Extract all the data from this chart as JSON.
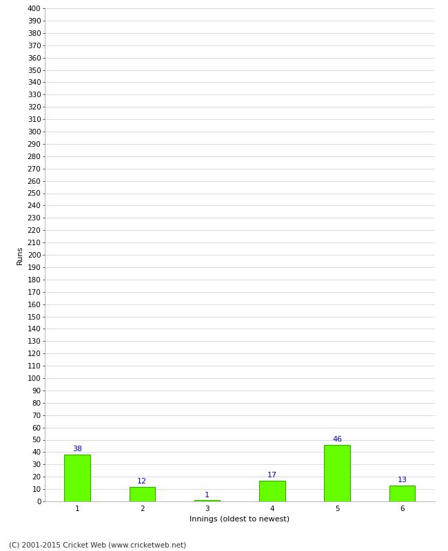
{
  "categories": [
    "1",
    "2",
    "3",
    "4",
    "5",
    "6"
  ],
  "values": [
    38,
    12,
    1,
    17,
    46,
    13
  ],
  "bar_color": "#66ff00",
  "bar_edge_color": "#33aa00",
  "label_color": "#0000cc",
  "xlabel": "Innings (oldest to newest)",
  "ylabel": "Runs",
  "ylim": [
    0,
    400
  ],
  "ytick_step": 10,
  "background_color": "#ffffff",
  "grid_color": "#cccccc",
  "footer_text": "(C) 2001-2015 Cricket Web (www.cricketweb.net)",
  "label_fontsize": 8,
  "axis_label_fontsize": 8,
  "tick_fontsize": 7.5,
  "footer_fontsize": 7.5,
  "bar_width": 0.4
}
